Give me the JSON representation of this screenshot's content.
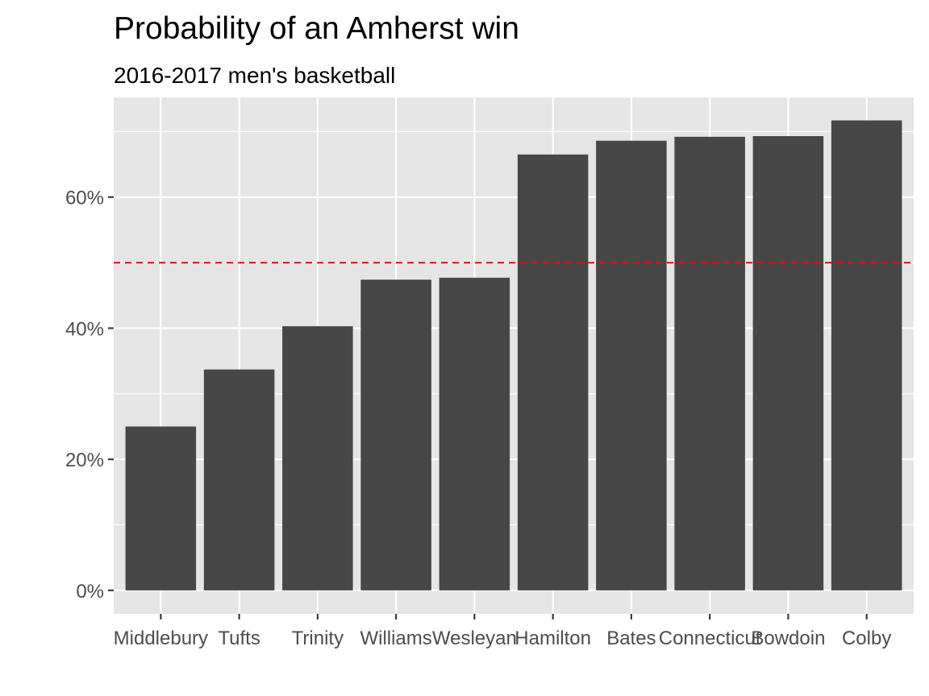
{
  "chart_data": {
    "type": "bar",
    "title": "Probability of an Amherst win",
    "subtitle": "2016-2017 men's basketball",
    "xlabel": "",
    "ylabel": "",
    "categories": [
      "Middlebury",
      "Tufts",
      "Trinity",
      "Williams",
      "Wesleyan",
      "Hamilton",
      "Bates",
      "Connecticut",
      "Bowdoin",
      "Colby"
    ],
    "values": [
      0.25,
      0.337,
      0.403,
      0.474,
      0.477,
      0.665,
      0.686,
      0.692,
      0.693,
      0.717
    ],
    "ylim": [
      -0.0358,
      0.752
    ],
    "yticks": [
      0,
      0.2,
      0.4,
      0.6
    ],
    "ytick_labels": [
      "0%",
      "20%",
      "40%",
      "60%"
    ],
    "reference_line": {
      "value": 0.5,
      "style": "dashed",
      "color": "#FF0000"
    },
    "grid": true,
    "colors": {
      "bar": "#474747",
      "panel": "#E5E5E5",
      "grid": "#FFFFFF",
      "axis_text": "#4D4D4D"
    }
  }
}
